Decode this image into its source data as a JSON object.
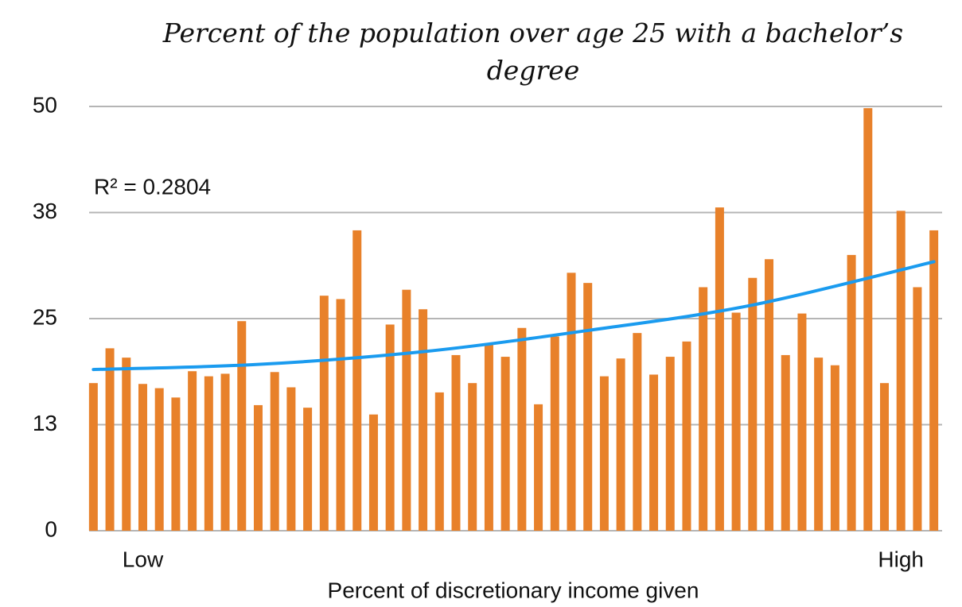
{
  "chart_data": {
    "type": "bar",
    "title": "Percent of the population over age 25 with a bachelor’s degree",
    "x_label": "Percent of discretionary income given",
    "categories": [
      null,
      null,
      null,
      "Low",
      null,
      null,
      null,
      null,
      null,
      null,
      null,
      null,
      null,
      null,
      null,
      null,
      null,
      null,
      null,
      null,
      null,
      null,
      null,
      null,
      null,
      null,
      null,
      null,
      null,
      null,
      null,
      null,
      null,
      null,
      null,
      null,
      null,
      null,
      null,
      null,
      null,
      null,
      null,
      null,
      null,
      null,
      null,
      null,
      null,
      "High",
      null,
      null
    ],
    "values": [
      17.4,
      21.5,
      20.4,
      17.3,
      16.8,
      15.7,
      18.8,
      18.2,
      18.5,
      24.7,
      14.8,
      18.7,
      16.9,
      14.5,
      27.7,
      27.3,
      35.4,
      13.7,
      24.3,
      28.4,
      26.1,
      16.3,
      20.7,
      17.4,
      21.9,
      20.5,
      23.9,
      14.9,
      22.9,
      30.4,
      29.2,
      18.2,
      20.3,
      23.3,
      18.4,
      20.5,
      22.3,
      28.7,
      38.1,
      25.7,
      29.8,
      32.0,
      20.7,
      25.6,
      20.4,
      19.5,
      32.5,
      49.8,
      17.4,
      37.7,
      28.7,
      35.4
    ],
    "color": "#e8812a",
    "ylim": [
      0,
      50
    ],
    "yticks": [
      0,
      {
        "value": 12.5,
        "label": "13"
      },
      25,
      {
        "value": 37.5,
        "label": "38"
      },
      50
    ],
    "grid": true,
    "trendline": {
      "color": "#1a9bef",
      "label": "R² = 0.2804",
      "x": [
        0,
        10,
        20,
        30,
        40,
        51
      ],
      "values": [
        19.0,
        19.6,
        21.1,
        23.6,
        26.6,
        31.7
      ]
    }
  }
}
